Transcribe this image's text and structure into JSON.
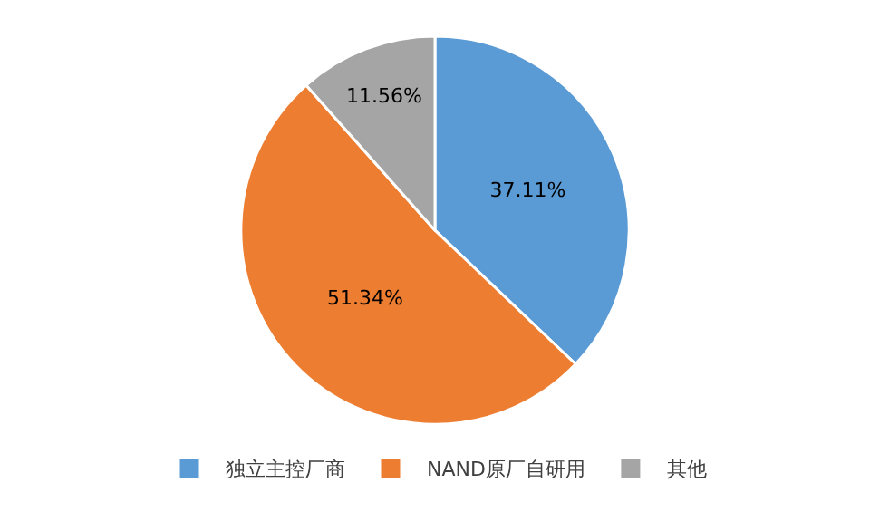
{
  "chart_data": {
    "type": "pie",
    "categories": [
      "独立主控厂商",
      "NAND原厂自研用",
      "其他"
    ],
    "values": [
      37.11,
      51.34,
      11.56
    ],
    "value_labels": [
      "37.11%",
      "51.34%",
      "11.56%"
    ],
    "colors": [
      "#5b9bd5",
      "#ed7d31",
      "#a5a5a5"
    ],
    "legend": "bottom"
  }
}
